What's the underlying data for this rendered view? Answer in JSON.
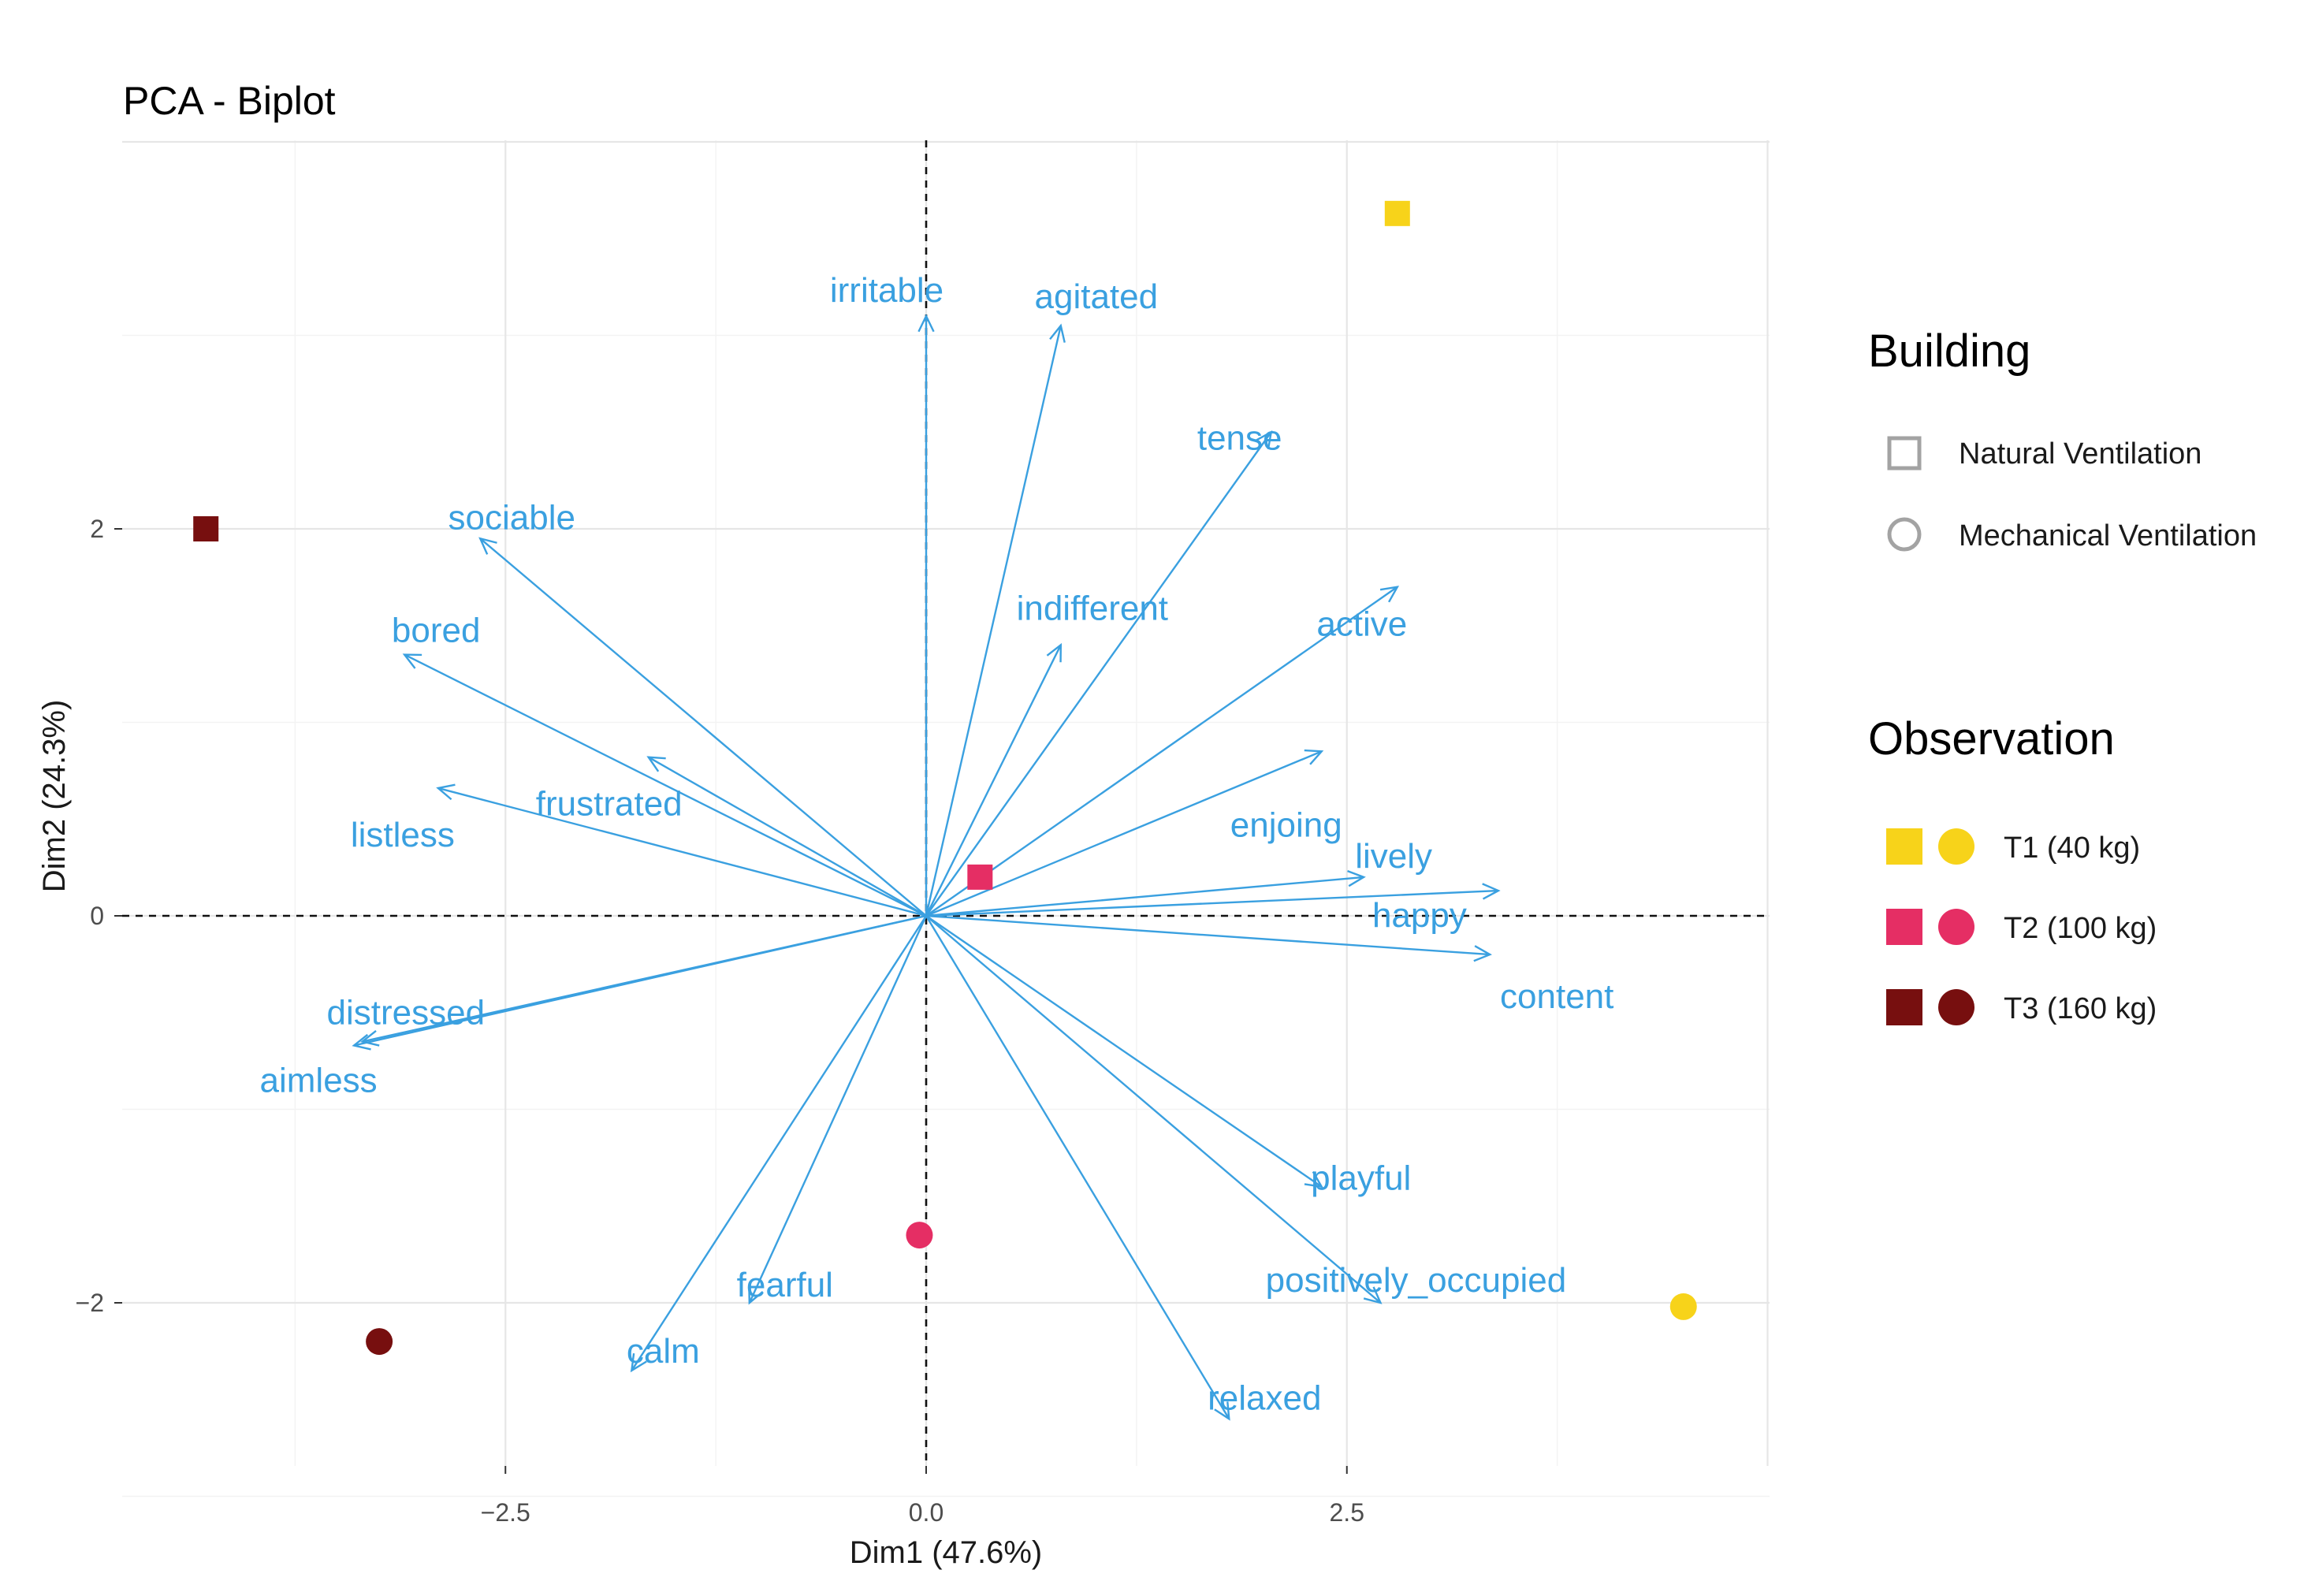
{
  "chart_data": {
    "type": "scatter",
    "title": "PCA - Biplot",
    "xlabel": "Dim1 (47.6%)",
    "ylabel": "Dim2 (24.3%)",
    "xlim": [
      -4.7,
      4.9
    ],
    "ylim": [
      -2.85,
      4.0
    ],
    "x_ticks": [
      {
        "value": -2.5,
        "label": "−2.5"
      },
      {
        "value": 0.0,
        "label": "0.0"
      },
      {
        "value": 2.5,
        "label": "2.5"
      }
    ],
    "y_ticks": [
      {
        "value": -2,
        "label": "−2"
      },
      {
        "value": 0,
        "label": "0"
      },
      {
        "value": 2,
        "label": "2"
      }
    ],
    "grid": true,
    "arrow_color": "#3aa0e0",
    "variables": [
      {
        "name": "irritable",
        "x": 0.0,
        "y": 3.1
      },
      {
        "name": "agitated",
        "x": 0.8,
        "y": 3.05
      },
      {
        "name": "tense",
        "x": 2.05,
        "y": 2.5
      },
      {
        "name": "sociable",
        "x": -2.65,
        "y": 1.95
      },
      {
        "name": "indifferent",
        "x": 0.8,
        "y": 1.4
      },
      {
        "name": "active",
        "x": 2.8,
        "y": 1.7
      },
      {
        "name": "bored",
        "x": -3.1,
        "y": 1.35
      },
      {
        "name": "frustrated",
        "x": -1.65,
        "y": 0.82
      },
      {
        "name": "enjoing",
        "x": 2.35,
        "y": 0.85
      },
      {
        "name": "listless",
        "x": -2.9,
        "y": 0.66
      },
      {
        "name": "lively",
        "x": 2.6,
        "y": 0.2
      },
      {
        "name": "happy",
        "x": 3.4,
        "y": 0.13
      },
      {
        "name": "content",
        "x": 3.35,
        "y": -0.2
      },
      {
        "name": "distressed",
        "x": -3.35,
        "y": -0.65
      },
      {
        "name": "aimless",
        "x": -3.4,
        "y": -0.67
      },
      {
        "name": "playful",
        "x": 2.35,
        "y": -1.4
      },
      {
        "name": "fearful",
        "x": -1.05,
        "y": -2.0
      },
      {
        "name": "positively_occupied",
        "x": 2.7,
        "y": -2.0
      },
      {
        "name": "calm",
        "x": -1.75,
        "y": -2.35
      },
      {
        "name": "relaxed",
        "x": 1.8,
        "y": -2.6
      }
    ],
    "observations": [
      {
        "group": "T1 (40 kg)",
        "building": "Natural Ventilation",
        "x": 2.8,
        "y": 3.63
      },
      {
        "group": "T1 (40 kg)",
        "building": "Mechanical Ventilation",
        "x": 4.5,
        "y": -2.02
      },
      {
        "group": "T2 (100 kg)",
        "building": "Natural Ventilation",
        "x": 0.32,
        "y": 0.2
      },
      {
        "group": "T2 (100 kg)",
        "building": "Mechanical Ventilation",
        "x": -0.04,
        "y": -1.65
      },
      {
        "group": "T3 (160 kg)",
        "building": "Natural Ventilation",
        "x": -4.28,
        "y": 2.0
      },
      {
        "group": "T3 (160 kg)",
        "building": "Mechanical Ventilation",
        "x": -3.25,
        "y": -2.2
      }
    ],
    "legend": {
      "building": {
        "title": "Building",
        "items": [
          "Natural Ventilation",
          "Mechanical Ventilation"
        ]
      },
      "observation": {
        "title": "Observation",
        "items": [
          {
            "label": "T1 (40 kg)",
            "color": "#f7d31a"
          },
          {
            "label": "T2 (100 kg)",
            "color": "#e52e64"
          },
          {
            "label": "T3 (160 kg)",
            "color": "#770f0f"
          }
        ]
      }
    }
  }
}
